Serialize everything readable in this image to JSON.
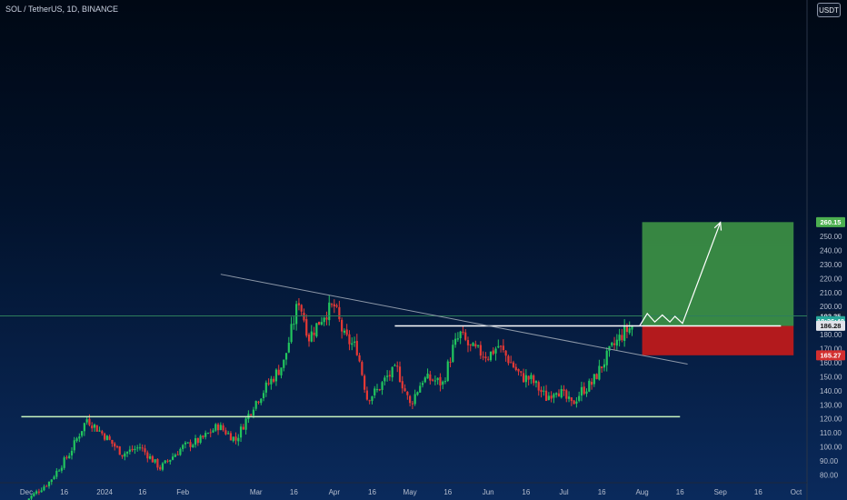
{
  "title": "SOL / TetherUS, 1D, BINANCE",
  "currency_button": "USDT",
  "chart_data": {
    "type": "candlestick",
    "title": "SOL / TetherUS, 1D, BINANCE",
    "y_axis": {
      "min": 77,
      "max": 265,
      "ticks": [
        80,
        90,
        100,
        110,
        120,
        130,
        140,
        150,
        160,
        170,
        180,
        190,
        200,
        210,
        220,
        230,
        240,
        250
      ]
    },
    "x_axis": {
      "ticks": [
        {
          "label": "Dec",
          "date": "2023-12-01"
        },
        {
          "label": "16",
          "date": "2023-12-16"
        },
        {
          "label": "2024",
          "date": "2024-01-01"
        },
        {
          "label": "16",
          "date": "2024-01-16"
        },
        {
          "label": "Feb",
          "date": "2024-02-01"
        },
        {
          "label": "Mar",
          "date": "2024-03-01"
        },
        {
          "label": "16",
          "date": "2024-03-16"
        },
        {
          "label": "Apr",
          "date": "2024-04-01"
        },
        {
          "label": "16",
          "date": "2024-04-16"
        },
        {
          "label": "May",
          "date": "2024-05-01"
        },
        {
          "label": "16",
          "date": "2024-05-16"
        },
        {
          "label": "Jun",
          "date": "2024-06-01"
        },
        {
          "label": "16",
          "date": "2024-06-16"
        },
        {
          "label": "Jul",
          "date": "2024-07-01"
        },
        {
          "label": "16",
          "date": "2024-07-16"
        },
        {
          "label": "Aug",
          "date": "2024-08-01"
        },
        {
          "label": "16",
          "date": "2024-08-16"
        },
        {
          "label": "Sep",
          "date": "2024-09-01"
        },
        {
          "label": "16",
          "date": "2024-09-16"
        },
        {
          "label": "Oct",
          "date": "2024-10-01"
        }
      ]
    },
    "keypoints": [
      {
        "date": "2023-12-01",
        "price": 62
      },
      {
        "date": "2023-12-10",
        "price": 75
      },
      {
        "date": "2023-12-18",
        "price": 95
      },
      {
        "date": "2023-12-25",
        "price": 120
      },
      {
        "date": "2024-01-01",
        "price": 108
      },
      {
        "date": "2024-01-08",
        "price": 95
      },
      {
        "date": "2024-01-15",
        "price": 100
      },
      {
        "date": "2024-01-23",
        "price": 85
      },
      {
        "date": "2024-02-01",
        "price": 100
      },
      {
        "date": "2024-02-08",
        "price": 105
      },
      {
        "date": "2024-02-15",
        "price": 115
      },
      {
        "date": "2024-02-22",
        "price": 105
      },
      {
        "date": "2024-02-29",
        "price": 130
      },
      {
        "date": "2024-03-06",
        "price": 145
      },
      {
        "date": "2024-03-12",
        "price": 160
      },
      {
        "date": "2024-03-18",
        "price": 205
      },
      {
        "date": "2024-03-22",
        "price": 178
      },
      {
        "date": "2024-03-28",
        "price": 195
      },
      {
        "date": "2024-04-01",
        "price": 200
      },
      {
        "date": "2024-04-05",
        "price": 178
      },
      {
        "date": "2024-04-10",
        "price": 170
      },
      {
        "date": "2024-04-14",
        "price": 135
      },
      {
        "date": "2024-04-18",
        "price": 140
      },
      {
        "date": "2024-04-22",
        "price": 150
      },
      {
        "date": "2024-04-26",
        "price": 155
      },
      {
        "date": "2024-05-01",
        "price": 130
      },
      {
        "date": "2024-05-06",
        "price": 148
      },
      {
        "date": "2024-05-10",
        "price": 148
      },
      {
        "date": "2024-05-14",
        "price": 145
      },
      {
        "date": "2024-05-18",
        "price": 170
      },
      {
        "date": "2024-05-21",
        "price": 180
      },
      {
        "date": "2024-05-25",
        "price": 170
      },
      {
        "date": "2024-06-01",
        "price": 165
      },
      {
        "date": "2024-06-05",
        "price": 172
      },
      {
        "date": "2024-06-10",
        "price": 160
      },
      {
        "date": "2024-06-14",
        "price": 150
      },
      {
        "date": "2024-06-18",
        "price": 148
      },
      {
        "date": "2024-06-24",
        "price": 135
      },
      {
        "date": "2024-06-28",
        "price": 142
      },
      {
        "date": "2024-07-04",
        "price": 130
      },
      {
        "date": "2024-07-08",
        "price": 140
      },
      {
        "date": "2024-07-12",
        "price": 145
      },
      {
        "date": "2024-07-16",
        "price": 158
      },
      {
        "date": "2024-07-20",
        "price": 170
      },
      {
        "date": "2024-07-24",
        "price": 180
      },
      {
        "date": "2024-07-28",
        "price": 186
      }
    ],
    "annotations": {
      "support_line": {
        "price": 121.5,
        "from": "2023-11-29",
        "to": "2024-08-16"
      },
      "resistance_line": {
        "price": 186.2,
        "from": "2024-04-25",
        "to": "2024-09-25"
      },
      "trend_line": {
        "from_date": "2024-02-16",
        "from_price": 223,
        "to_date": "2024-08-19",
        "to_price": 159
      },
      "horizontal_level": {
        "price": 193.35
      },
      "long_position": {
        "from": "2024-08-01",
        "to": "2024-09-30",
        "entry": 186.2,
        "target": 260.15,
        "stop": 165.27
      },
      "projection_path": [
        {
          "date": "2024-07-31",
          "price": 186.2
        },
        {
          "date": "2024-08-03",
          "price": 195
        },
        {
          "date": "2024-08-06",
          "price": 189
        },
        {
          "date": "2024-08-09",
          "price": 194
        },
        {
          "date": "2024-08-12",
          "price": 189
        },
        {
          "date": "2024-08-14",
          "price": 193
        },
        {
          "date": "2024-08-17",
          "price": 188
        },
        {
          "date": "2024-09-01",
          "price": 260
        }
      ]
    },
    "price_tags": [
      {
        "label": "260.15",
        "bg": "#4caf50",
        "fg": "#ffffff",
        "price": 260.15
      },
      {
        "label": "193.35",
        "bg": "#0e1e36",
        "fg": "#e0e6f0",
        "price": 193.35
      },
      {
        "label": "18:26:48",
        "bg": "#26a69a",
        "fg": "#ffffff",
        "price": 189.6
      },
      {
        "label": "186.28",
        "bg": "#e0e3ea",
        "fg": "#111111",
        "price": 186.28
      },
      {
        "label": "165.27",
        "bg": "#d32f2f",
        "fg": "#ffffff",
        "price": 165.27
      }
    ],
    "colors": {
      "up": "#22c55e",
      "down": "#e53935",
      "support": "#c8f5c0",
      "resistance": "#ffffff",
      "trend": "#8d98a8",
      "target_zone": "#43a047",
      "stop_zone": "#c21a1a",
      "level": "#2e7d5b",
      "projection": "#ffffff"
    }
  }
}
